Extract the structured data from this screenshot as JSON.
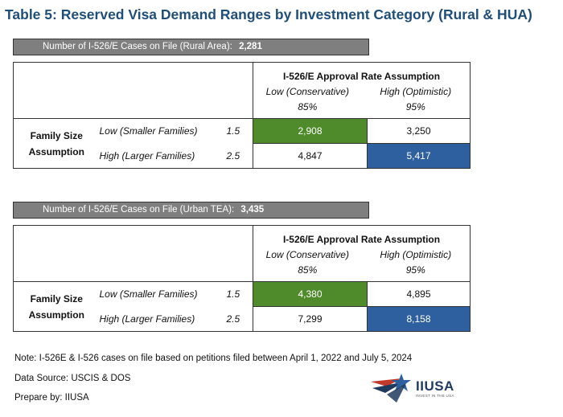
{
  "title": "Table 5: Reserved Visa Demand Ranges by Investment Category (Rural & HUA)",
  "approval_header": "I-526/E Approval Rate Assumption",
  "rates": [
    {
      "label": "Low (Conservative)",
      "pct": "85%"
    },
    {
      "label": "High (Optimistic)",
      "pct": "95%"
    }
  ],
  "family_label_line1": "Family Size",
  "family_label_line2": "Assumption",
  "sizes": [
    {
      "label": "Low (Smaller Families)",
      "mult": "1.5"
    },
    {
      "label": "High (Larger Families)",
      "mult": "2.5"
    }
  ],
  "rural": {
    "cases_label": "Number of I-526/E Cases on File (Rural Area):",
    "cases_value": "2,281",
    "values": [
      [
        "2,908",
        "3,250"
      ],
      [
        "4,847",
        "5,417"
      ]
    ]
  },
  "urban": {
    "cases_label": "Number of I-526/E Cases on File (Urban TEA):",
    "cases_value": "3,435",
    "values": [
      [
        "4,380",
        "4,895"
      ],
      [
        "7,299",
        "8,158"
      ]
    ]
  },
  "notes": {
    "note": "Note: I-526E & I-526 cases on file based on petitions filed between April 1, 2022 and July 5, 2024",
    "source": "Data Source: USCIS & DOS",
    "prepared": "Prepare by: IIUSA"
  },
  "logo": {
    "name": "IIUSA",
    "tagline": "INVEST IN THE USA"
  },
  "colors": {
    "title": "#1f4e79",
    "low_high_cell": "#4f8a2b",
    "high_high_cell": "#2e5f9e",
    "bar": "#7f7f7f"
  }
}
